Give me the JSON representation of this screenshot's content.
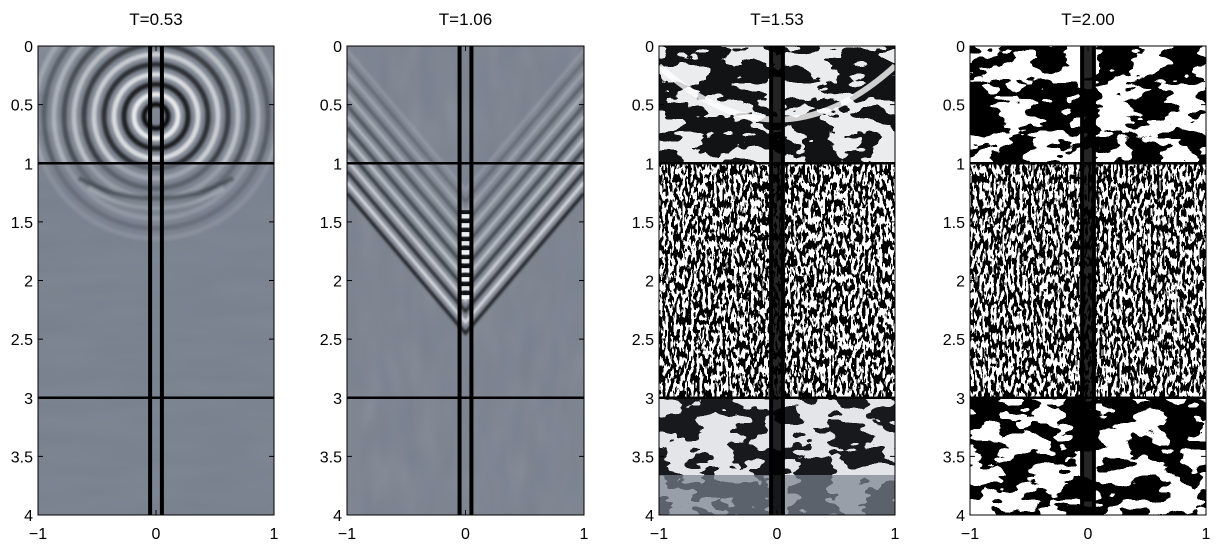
{
  "chart_data": [
    {
      "type": "heatmap",
      "title": "T=0.53",
      "xlim": [
        -1,
        1
      ],
      "ylim": [
        0,
        4
      ],
      "y_reversed": true,
      "xticks": [
        "-1",
        "0",
        "1"
      ],
      "yticks": [
        "0",
        "0.5",
        "1",
        "1.5",
        "2",
        "2.5",
        "3",
        "3.5",
        "4"
      ],
      "layer_boundaries_y": [
        1,
        3
      ],
      "well_x": [
        -0.05,
        0.05
      ],
      "colormap": "gray",
      "pattern": "shallow-curved-wavefronts"
    },
    {
      "type": "heatmap",
      "title": "T=1.06",
      "xlim": [
        -1,
        1
      ],
      "ylim": [
        0,
        4
      ],
      "y_reversed": true,
      "xticks": [
        "-1",
        "0",
        "1"
      ],
      "yticks": [
        "0",
        "0.5",
        "1",
        "1.5",
        "2",
        "2.5",
        "3",
        "3.5",
        "4"
      ],
      "layer_boundaries_y": [
        1,
        3
      ],
      "well_x": [
        -0.05,
        0.05
      ],
      "colormap": "gray",
      "pattern": "v-shaped-wavefronts"
    },
    {
      "type": "heatmap",
      "title": "T=1.53",
      "xlim": [
        -1,
        1
      ],
      "ylim": [
        0,
        4
      ],
      "y_reversed": true,
      "xticks": [
        "-1",
        "0",
        "1"
      ],
      "yticks": [
        "0",
        "0.5",
        "1",
        "1.5",
        "2",
        "2.5",
        "3",
        "3.5",
        "4"
      ],
      "layer_boundaries_y": [
        1,
        3
      ],
      "well_x": [
        -0.05,
        0.05
      ],
      "colormap": "gray",
      "pattern": "high-contrast-with-noisy-middle-layer"
    },
    {
      "type": "heatmap",
      "title": "T=2.00",
      "xlim": [
        -1,
        1
      ],
      "ylim": [
        0,
        4
      ],
      "y_reversed": true,
      "xticks": [
        "-1",
        "0",
        "1"
      ],
      "yticks": [
        "0",
        "0.5",
        "1",
        "1.5",
        "2",
        "2.5",
        "3",
        "3.5",
        "4"
      ],
      "layer_boundaries_y": [
        1,
        3
      ],
      "well_x": [
        -0.05,
        0.05
      ],
      "colormap": "gray",
      "pattern": "saturated-bands-with-noisy-middle-layer"
    }
  ],
  "colors": {
    "background_field": "#79818e",
    "dark": "#000000",
    "light": "#ffffff"
  }
}
